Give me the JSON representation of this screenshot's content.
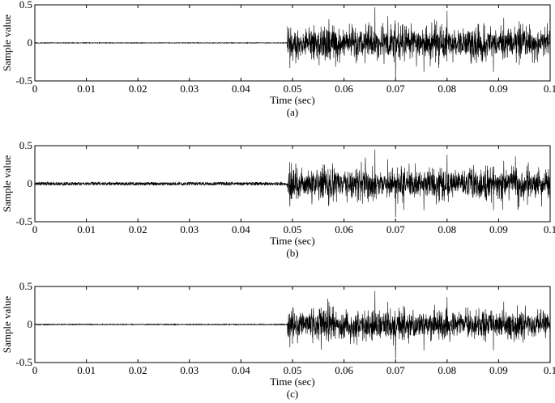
{
  "chart_data": [
    {
      "type": "line",
      "caption": "(a)",
      "xlabel": "Time (sec)",
      "ylabel": "Sample value",
      "xlim": [
        0,
        0.1
      ],
      "ylim": [
        -0.5,
        0.5
      ],
      "xticks": [
        0,
        0.01,
        0.02,
        0.03,
        0.04,
        0.05,
        0.06,
        0.07,
        0.08,
        0.09,
        0.1
      ],
      "xtick_labels": [
        "0",
        "0.01",
        "0.02",
        "0.03",
        "0.04",
        "0.05",
        "0.06",
        "0.07",
        "0.08",
        "0.09",
        "0.1"
      ],
      "yticks": [
        -0.5,
        0,
        0.5
      ],
      "ytick_labels": [
        "-0.5",
        "0",
        "0.5"
      ],
      "grid": false,
      "series": [
        {
          "onset": 0.049,
          "pre_onset_amplitude": 0.004,
          "post_onset_amplitude": 0.18,
          "peaks": [
            {
              "x": 0.0495,
              "y": -0.33
            },
            {
              "x": 0.066,
              "y": 0.47
            },
            {
              "x": 0.0685,
              "y": 0.35
            },
            {
              "x": 0.07,
              "y": -0.47
            },
            {
              "x": 0.0755,
              "y": -0.38
            },
            {
              "x": 0.08,
              "y": 0.42
            },
            {
              "x": 0.089,
              "y": -0.38
            },
            {
              "x": 0.091,
              "y": 0.33
            }
          ]
        }
      ]
    },
    {
      "type": "line",
      "caption": "(b)",
      "xlabel": "Time (sec)",
      "ylabel": "Sample value",
      "xlim": [
        0,
        0.1
      ],
      "ylim": [
        -0.5,
        0.5
      ],
      "xticks": [
        0,
        0.01,
        0.02,
        0.03,
        0.04,
        0.05,
        0.06,
        0.07,
        0.08,
        0.09,
        0.1
      ],
      "xtick_labels": [
        "0",
        "0.01",
        "0.02",
        "0.03",
        "0.04",
        "0.05",
        "0.06",
        "0.07",
        "0.08",
        "0.09",
        "0.1"
      ],
      "yticks": [
        -0.5,
        0,
        0.5
      ],
      "ytick_labels": [
        "-0.5",
        "0",
        "0.5"
      ],
      "grid": false,
      "series": [
        {
          "onset": 0.049,
          "pre_onset_amplitude": 0.022,
          "post_onset_amplitude": 0.17,
          "peaks": [
            {
              "x": 0.0495,
              "y": -0.3
            },
            {
              "x": 0.066,
              "y": 0.45
            },
            {
              "x": 0.0685,
              "y": 0.32
            },
            {
              "x": 0.07,
              "y": -0.44
            },
            {
              "x": 0.0755,
              "y": -0.35
            },
            {
              "x": 0.08,
              "y": 0.38
            },
            {
              "x": 0.089,
              "y": -0.35
            },
            {
              "x": 0.091,
              "y": 0.3
            }
          ]
        }
      ]
    },
    {
      "type": "line",
      "caption": "(c)",
      "xlabel": "Time (sec)",
      "ylabel": "Sample value",
      "xlim": [
        0,
        0.1
      ],
      "ylim": [
        -0.5,
        0.5
      ],
      "xticks": [
        0,
        0.01,
        0.02,
        0.03,
        0.04,
        0.05,
        0.06,
        0.07,
        0.08,
        0.09,
        0.1
      ],
      "xtick_labels": [
        "0",
        "0.01",
        "0.02",
        "0.03",
        "0.04",
        "0.05",
        "0.06",
        "0.07",
        "0.08",
        "0.09",
        "0.1"
      ],
      "yticks": [
        -0.5,
        0,
        0.5
      ],
      "ytick_labels": [
        "-0.5",
        "0",
        "0.5"
      ],
      "grid": false,
      "series": [
        {
          "onset": 0.049,
          "pre_onset_amplitude": 0.006,
          "post_onset_amplitude": 0.16,
          "peaks": [
            {
              "x": 0.0495,
              "y": -0.3
            },
            {
              "x": 0.066,
              "y": 0.44
            },
            {
              "x": 0.0685,
              "y": 0.3
            },
            {
              "x": 0.07,
              "y": -0.45
            },
            {
              "x": 0.0755,
              "y": -0.34
            },
            {
              "x": 0.08,
              "y": 0.36
            },
            {
              "x": 0.089,
              "y": -0.34
            },
            {
              "x": 0.091,
              "y": 0.3
            }
          ]
        }
      ]
    }
  ]
}
